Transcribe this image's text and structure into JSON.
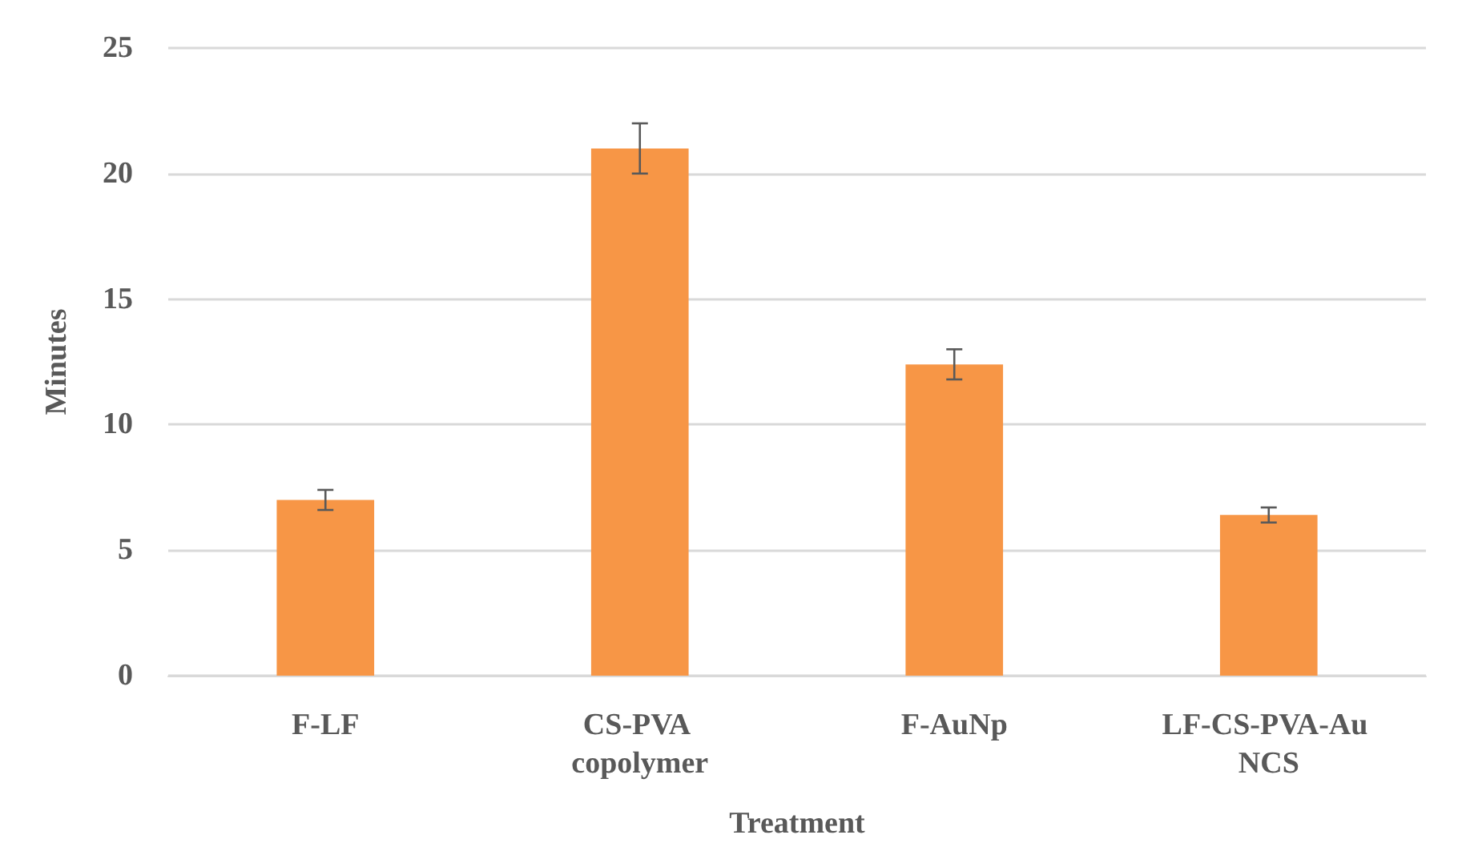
{
  "chart_data": {
    "type": "bar",
    "xlabel": "Treatment",
    "ylabel": "Minutes",
    "categories": [
      "F-LF",
      "CS-PVA copolymer",
      "F-AuNp",
      "LF-CS-PVA-Au NCS"
    ],
    "values": [
      7.0,
      21.0,
      12.4,
      6.4
    ],
    "errors": [
      0.4,
      1.0,
      0.6,
      0.3
    ],
    "color": "#f79646",
    "ylim": [
      0,
      25
    ],
    "yticks": [
      0,
      5,
      10,
      15,
      20,
      25
    ],
    "grid": "y"
  }
}
